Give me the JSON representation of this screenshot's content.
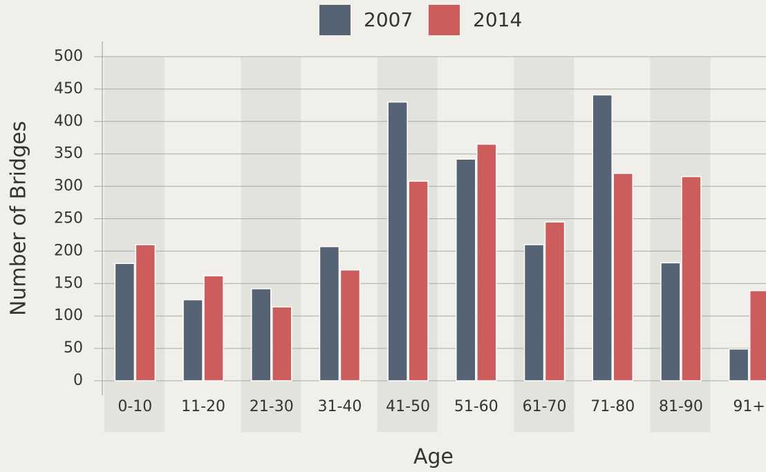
{
  "chart_data": {
    "type": "bar",
    "categories": [
      "0-10",
      "11-20",
      "21-30",
      "31-40",
      "41-50",
      "51-60",
      "61-70",
      "71-80",
      "81-90",
      "91+"
    ],
    "series": [
      {
        "name": "2007",
        "color": "#566375",
        "values": [
          181,
          125,
          142,
          207,
          430,
          342,
          210,
          441,
          182,
          49
        ]
      },
      {
        "name": "2014",
        "color": "#cd5c5c",
        "values": [
          210,
          162,
          114,
          171,
          308,
          365,
          245,
          320,
          315,
          139
        ]
      }
    ],
    "xlabel": "Age",
    "ylabel": "Number of Bridges",
    "ylim": [
      0,
      500
    ],
    "yticks": [
      0,
      50,
      100,
      150,
      200,
      250,
      300,
      350,
      400,
      450,
      500
    ],
    "grid": true,
    "alternate_bands": true,
    "legend": "top"
  }
}
